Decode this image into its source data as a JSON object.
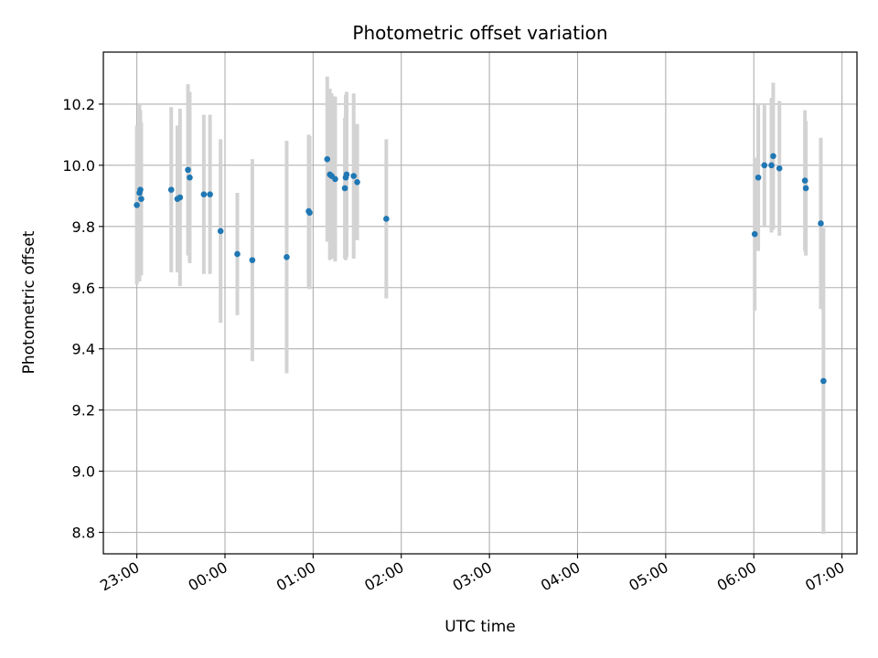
{
  "chart_data": {
    "type": "scatter",
    "title": "Photometric offset variation",
    "xlabel": "UTC time",
    "ylabel": "Photometric offset",
    "x_unit": "hours UTC (values >= 24 fall on the following day)",
    "xlim": [
      22.62,
      31.17
    ],
    "ylim": [
      8.73,
      10.37
    ],
    "x_ticks": [
      {
        "value": 23,
        "label": "23:00"
      },
      {
        "value": 24,
        "label": "00:00"
      },
      {
        "value": 25,
        "label": "01:00"
      },
      {
        "value": 26,
        "label": "02:00"
      },
      {
        "value": 27,
        "label": "03:00"
      },
      {
        "value": 28,
        "label": "04:00"
      },
      {
        "value": 29,
        "label": "05:00"
      },
      {
        "value": 30,
        "label": "06:00"
      },
      {
        "value": 31,
        "label": "07:00"
      }
    ],
    "y_ticks": [
      {
        "value": 8.8,
        "label": "8.8"
      },
      {
        "value": 9.0,
        "label": "9.0"
      },
      {
        "value": 9.2,
        "label": "9.2"
      },
      {
        "value": 9.4,
        "label": "9.4"
      },
      {
        "value": 9.6,
        "label": "9.6"
      },
      {
        "value": 9.8,
        "label": "9.8"
      },
      {
        "value": 10.0,
        "label": "10.0"
      },
      {
        "value": 10.2,
        "label": "10.2"
      }
    ],
    "grid": true,
    "colors": {
      "points": "#1f77b4",
      "errorbars": "#d3d3d3",
      "grid": "#b0b0b0"
    },
    "points": [
      {
        "x": 23.0,
        "y": 9.87,
        "err": 0.26
      },
      {
        "x": 23.03,
        "y": 9.91,
        "err": 0.29
      },
      {
        "x": 23.04,
        "y": 9.92,
        "err": 0.26
      },
      {
        "x": 23.05,
        "y": 9.89,
        "err": 0.25
      },
      {
        "x": 23.39,
        "y": 9.92,
        "err": 0.27
      },
      {
        "x": 23.46,
        "y": 9.89,
        "err": 0.24
      },
      {
        "x": 23.49,
        "y": 9.895,
        "err": 0.29
      },
      {
        "x": 23.58,
        "y": 9.985,
        "err": 0.28
      },
      {
        "x": 23.6,
        "y": 9.96,
        "err": 0.28
      },
      {
        "x": 23.76,
        "y": 9.905,
        "err": 0.26
      },
      {
        "x": 23.83,
        "y": 9.905,
        "err": 0.26
      },
      {
        "x": 23.95,
        "y": 9.785,
        "err": 0.3
      },
      {
        "x": 24.14,
        "y": 9.71,
        "err": 0.2
      },
      {
        "x": 24.31,
        "y": 9.69,
        "err": 0.33
      },
      {
        "x": 24.7,
        "y": 9.7,
        "err": 0.38
      },
      {
        "x": 24.95,
        "y": 9.85,
        "err": 0.25
      },
      {
        "x": 24.96,
        "y": 9.845,
        "err": 0.25
      },
      {
        "x": 25.16,
        "y": 10.02,
        "err": 0.27
      },
      {
        "x": 25.19,
        "y": 9.97,
        "err": 0.28
      },
      {
        "x": 25.21,
        "y": 9.965,
        "err": 0.27
      },
      {
        "x": 25.25,
        "y": 9.955,
        "err": 0.27
      },
      {
        "x": 25.36,
        "y": 9.925,
        "err": 0.23
      },
      {
        "x": 25.37,
        "y": 9.96,
        "err": 0.27
      },
      {
        "x": 25.38,
        "y": 9.97,
        "err": 0.27
      },
      {
        "x": 25.46,
        "y": 9.965,
        "err": 0.27
      },
      {
        "x": 25.5,
        "y": 9.945,
        "err": 0.19
      },
      {
        "x": 25.83,
        "y": 9.825,
        "err": 0.26
      },
      {
        "x": 30.01,
        "y": 9.775,
        "err": 0.25
      },
      {
        "x": 30.05,
        "y": 9.96,
        "err": 0.24
      },
      {
        "x": 30.12,
        "y": 10.0,
        "err": 0.2
      },
      {
        "x": 30.2,
        "y": 10.0,
        "err": 0.22
      },
      {
        "x": 30.22,
        "y": 10.03,
        "err": 0.24
      },
      {
        "x": 30.29,
        "y": 9.99,
        "err": 0.22
      },
      {
        "x": 30.58,
        "y": 9.95,
        "err": 0.23
      },
      {
        "x": 30.59,
        "y": 9.925,
        "err": 0.22
      },
      {
        "x": 30.76,
        "y": 9.81,
        "err": 0.28
      },
      {
        "x": 30.79,
        "y": 9.295,
        "err": 0.5
      }
    ]
  }
}
